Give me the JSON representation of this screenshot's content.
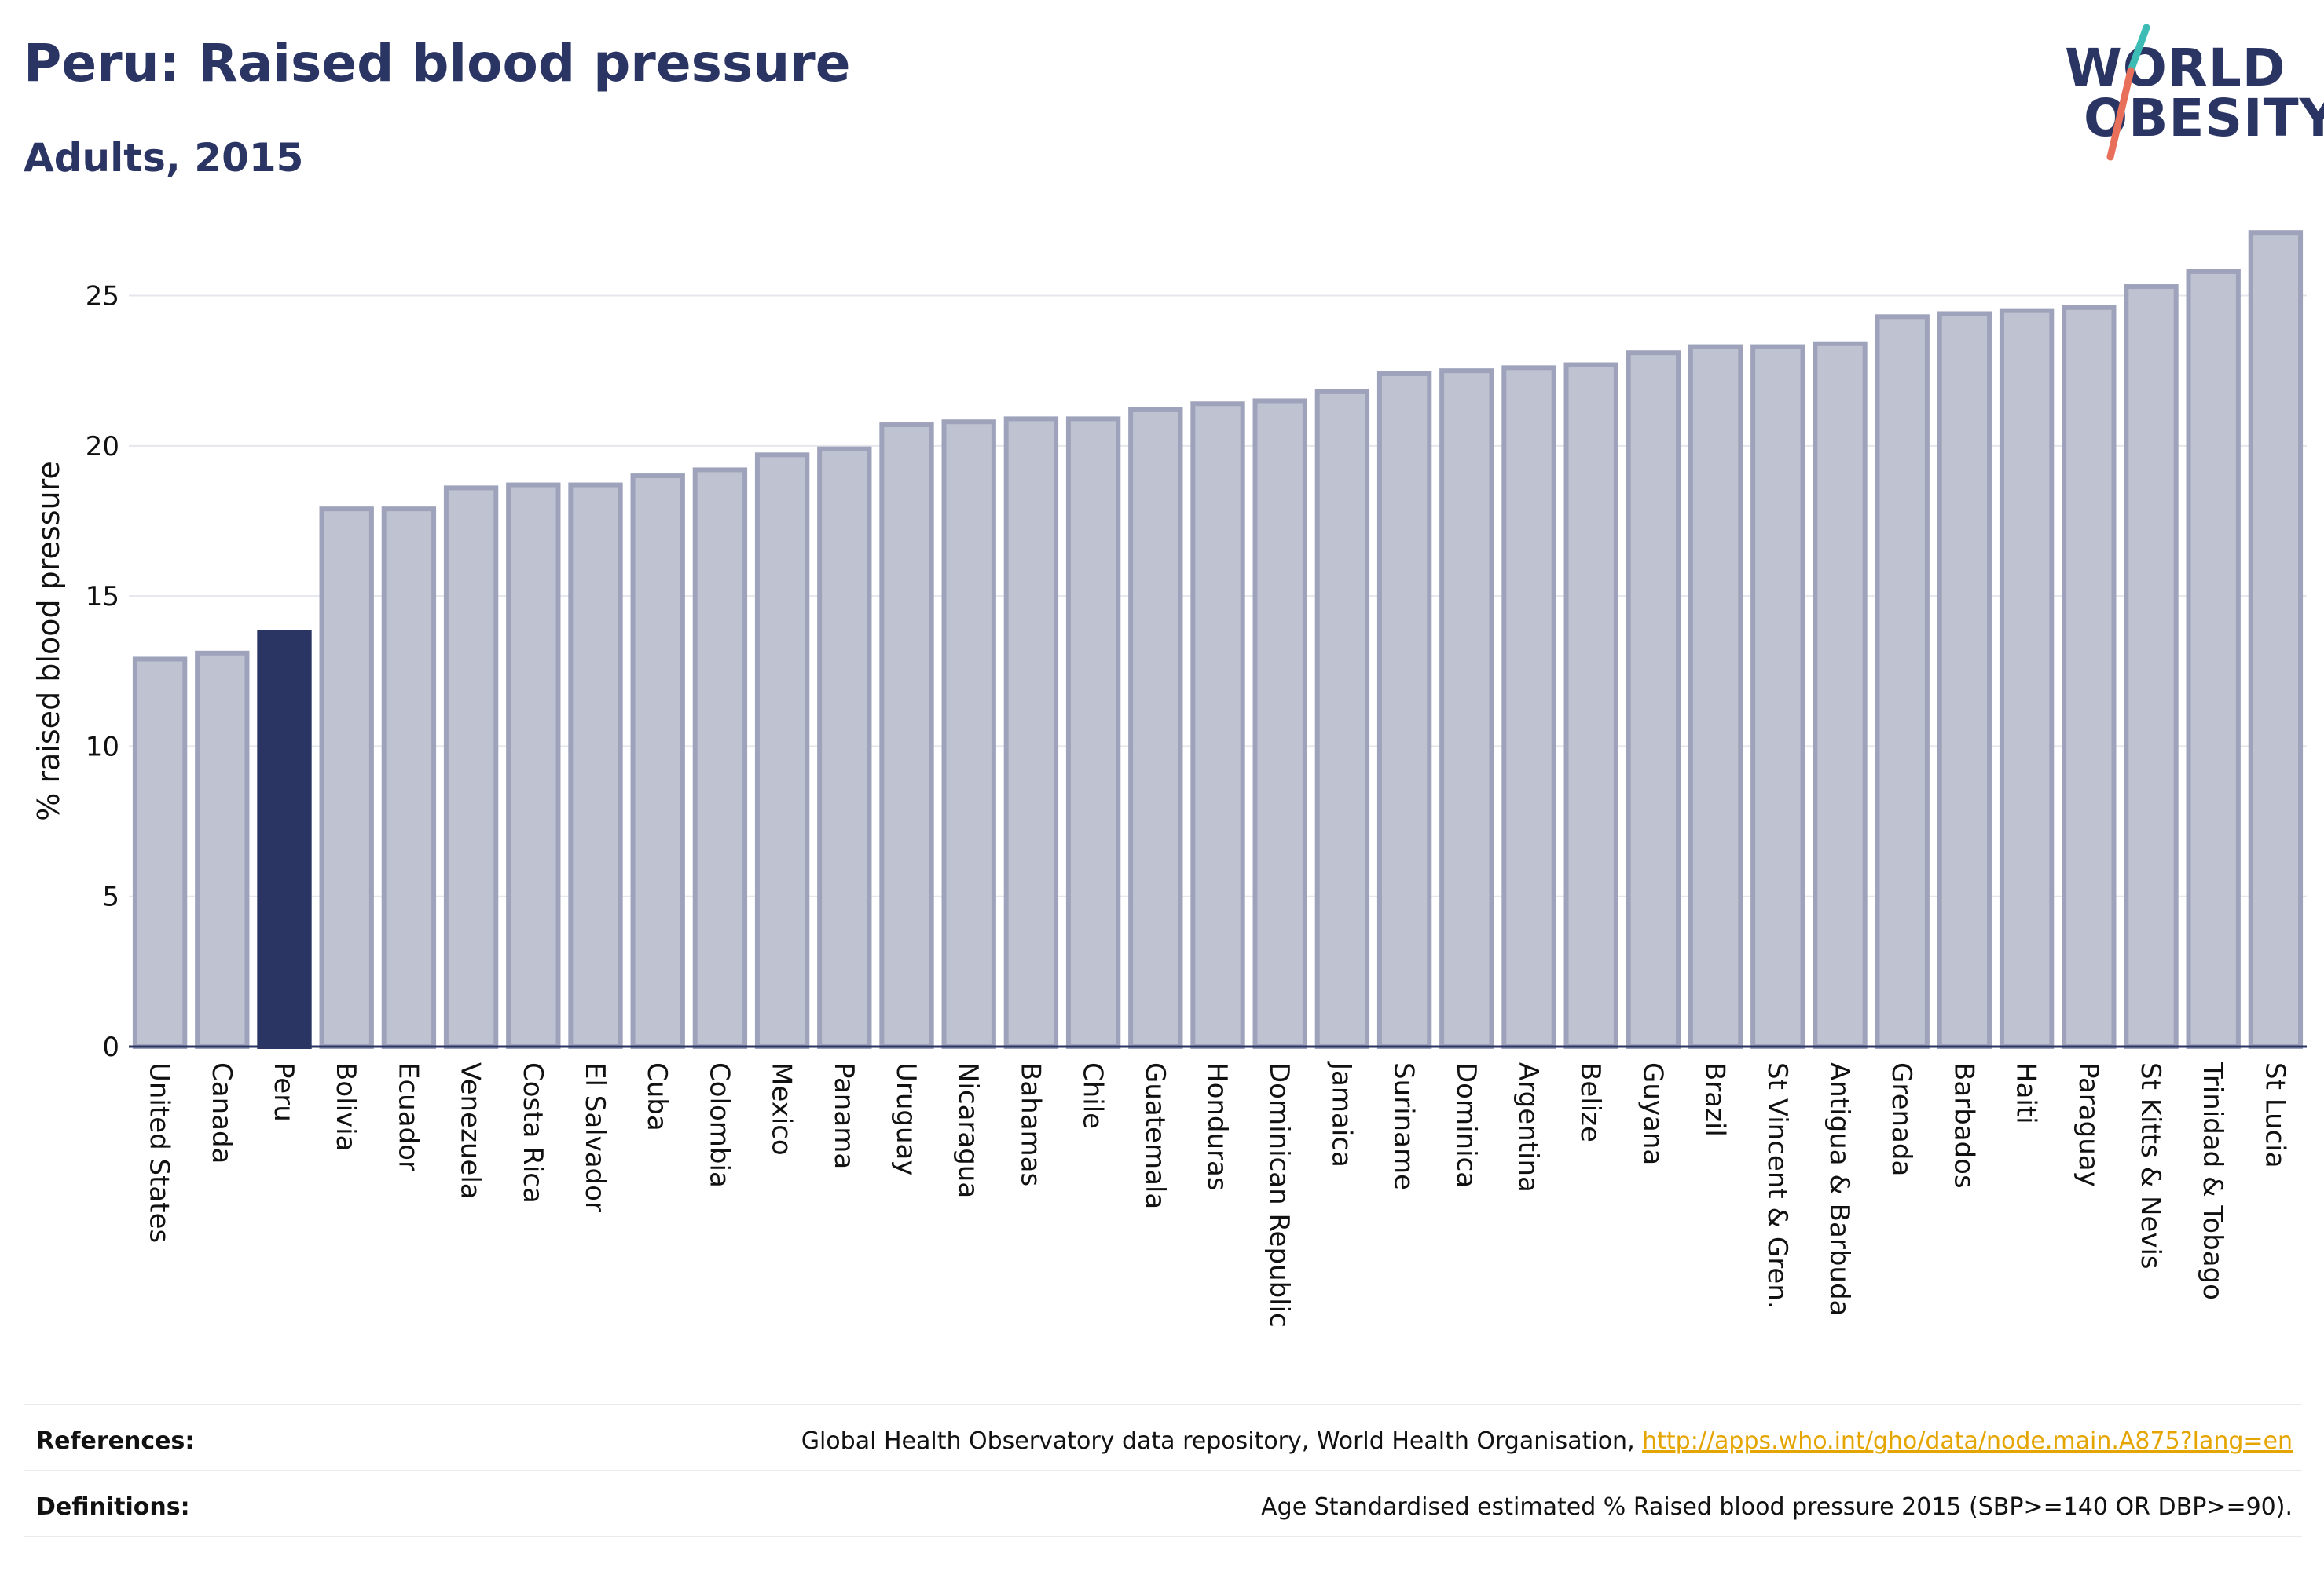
{
  "header": {
    "title": "Peru: Raised blood pressure",
    "subtitle": "Adults, 2015"
  },
  "logo": {
    "line1": "WORLD",
    "line2": "OBESITY"
  },
  "colors": {
    "highlight": "#2b3563",
    "bar_fill": "#bfc2d1",
    "bar_stroke": "#9ea3bb",
    "accent_teal": "#3cbcb4",
    "accent_coral": "#e8705a",
    "link": "#e5a500"
  },
  "chart_data": {
    "type": "bar",
    "title": "Peru: Raised blood pressure",
    "subtitle": "Adults, 2015",
    "ylabel": "% raised blood pressure",
    "xlabel": "",
    "ylim": [
      0,
      27
    ],
    "yticks": [
      0,
      5,
      10,
      15,
      20,
      25
    ],
    "grid": true,
    "highlight": "Peru",
    "categories": [
      "United States",
      "Canada",
      "Peru",
      "Bolivia",
      "Ecuador",
      "Venezuela",
      "Costa Rica",
      "El Salvador",
      "Cuba",
      "Colombia",
      "Mexico",
      "Panama",
      "Uruguay",
      "Nicaragua",
      "Bahamas",
      "Chile",
      "Guatemala",
      "Honduras",
      "Dominican Republic",
      "Jamaica",
      "Suriname",
      "Dominica",
      "Argentina",
      "Belize",
      "Guyana",
      "Brazil",
      "St Vincent & Gren.",
      "Antigua & Barbuda",
      "Grenada",
      "Barbados",
      "Haiti",
      "Paraguay",
      "St Kitts & Nevis",
      "Trinidad & Tobago",
      "St Lucia"
    ],
    "values": [
      12.9,
      13.1,
      13.8,
      17.9,
      17.9,
      18.6,
      18.7,
      18.7,
      19.0,
      19.2,
      19.7,
      19.9,
      20.7,
      20.8,
      20.9,
      20.9,
      21.2,
      21.4,
      21.5,
      21.8,
      22.4,
      22.5,
      22.6,
      22.7,
      23.1,
      23.3,
      23.3,
      23.4,
      24.3,
      24.4,
      24.5,
      24.6,
      25.3,
      25.8,
      27.1
    ]
  },
  "footer": {
    "references_label": "References:",
    "references_text": "Global Health Observatory data repository, World Health Organisation, ",
    "references_link": "http://apps.who.int/gho/data/node.main.A875?lang=en",
    "definitions_label": "Definitions:",
    "definitions_text": "Age Standardised estimated % Raised blood pressure 2015 (SBP>=140 OR DBP>=90)."
  }
}
